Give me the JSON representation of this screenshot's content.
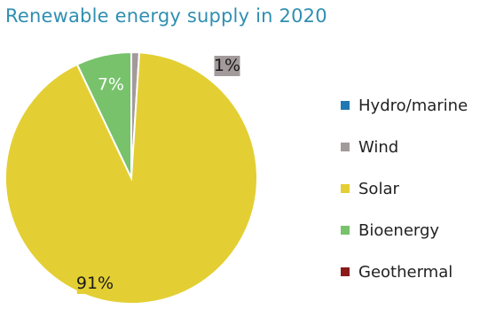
{
  "chart_data": {
    "type": "pie",
    "title": "Renewable energy supply in 2020",
    "categories": [
      "Hydro/marine",
      "Wind",
      "Solar",
      "Bioenergy",
      "Geothermal"
    ],
    "values": [
      0,
      1,
      91,
      7,
      0
    ],
    "data_labels": [
      "",
      "1%",
      "91%",
      "7%",
      ""
    ],
    "colors": [
      "#1f77b4",
      "#a39a9c",
      "#e3cf33",
      "#77c26b",
      "#8b1a1a"
    ],
    "legend_position": "right"
  }
}
